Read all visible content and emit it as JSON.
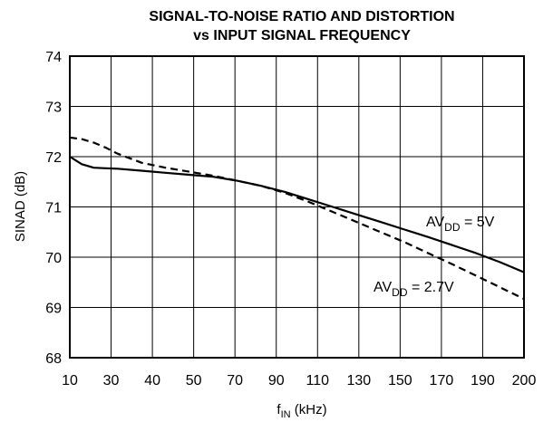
{
  "chart_data": {
    "type": "line",
    "title_line1": "SIGNAL-TO-NOISE RATIO AND DISTORTION",
    "title_line2": "vs INPUT SIGNAL FREQUENCY",
    "ylabel": "SINAD (dB)",
    "xlabel": {
      "main": "f",
      "sub": "IN",
      "unit": " (kHz)"
    },
    "xlim": [
      10,
      200
    ],
    "ylim": [
      68,
      74
    ],
    "x_ticks": [
      "10",
      "30",
      "40",
      "50",
      "70",
      "90",
      "110",
      "130",
      "150",
      "170",
      "190",
      "200"
    ],
    "y_ticks": [
      "68",
      "69",
      "70",
      "71",
      "72",
      "73",
      "74"
    ],
    "grid": true,
    "series": [
      {
        "name": "AVDD = 5V",
        "label": {
          "prefix": "AV",
          "sub": "DD",
          "suffix": " = 5V"
        },
        "style": "solid",
        "x": [
          10,
          15,
          20,
          25,
          30,
          40,
          50,
          60,
          70,
          80,
          90,
          100,
          110,
          120,
          130,
          140,
          150,
          160,
          170,
          180,
          190,
          200
        ],
        "y": [
          72.0,
          71.85,
          71.78,
          71.77,
          71.76,
          71.72,
          71.68,
          71.64,
          71.6,
          71.52,
          71.42,
          71.3,
          71.15,
          71.0,
          70.85,
          70.7,
          70.55,
          70.4,
          70.24,
          70.08,
          69.9,
          69.7
        ]
      },
      {
        "name": "AVDD = 2.7V",
        "label": {
          "prefix": "AV",
          "sub": "DD",
          "suffix": " = 2.7V"
        },
        "style": "dashed",
        "x": [
          10,
          15,
          20,
          25,
          30,
          40,
          50,
          60,
          70,
          80,
          90,
          100,
          110,
          120,
          130,
          140,
          150,
          160,
          170,
          180,
          190,
          200
        ],
        "y": [
          72.38,
          72.35,
          72.28,
          72.18,
          72.06,
          71.88,
          71.78,
          71.7,
          71.62,
          71.52,
          71.42,
          71.28,
          71.1,
          70.9,
          70.7,
          70.5,
          70.3,
          70.08,
          69.86,
          69.63,
          69.4,
          69.17
        ]
      }
    ]
  }
}
